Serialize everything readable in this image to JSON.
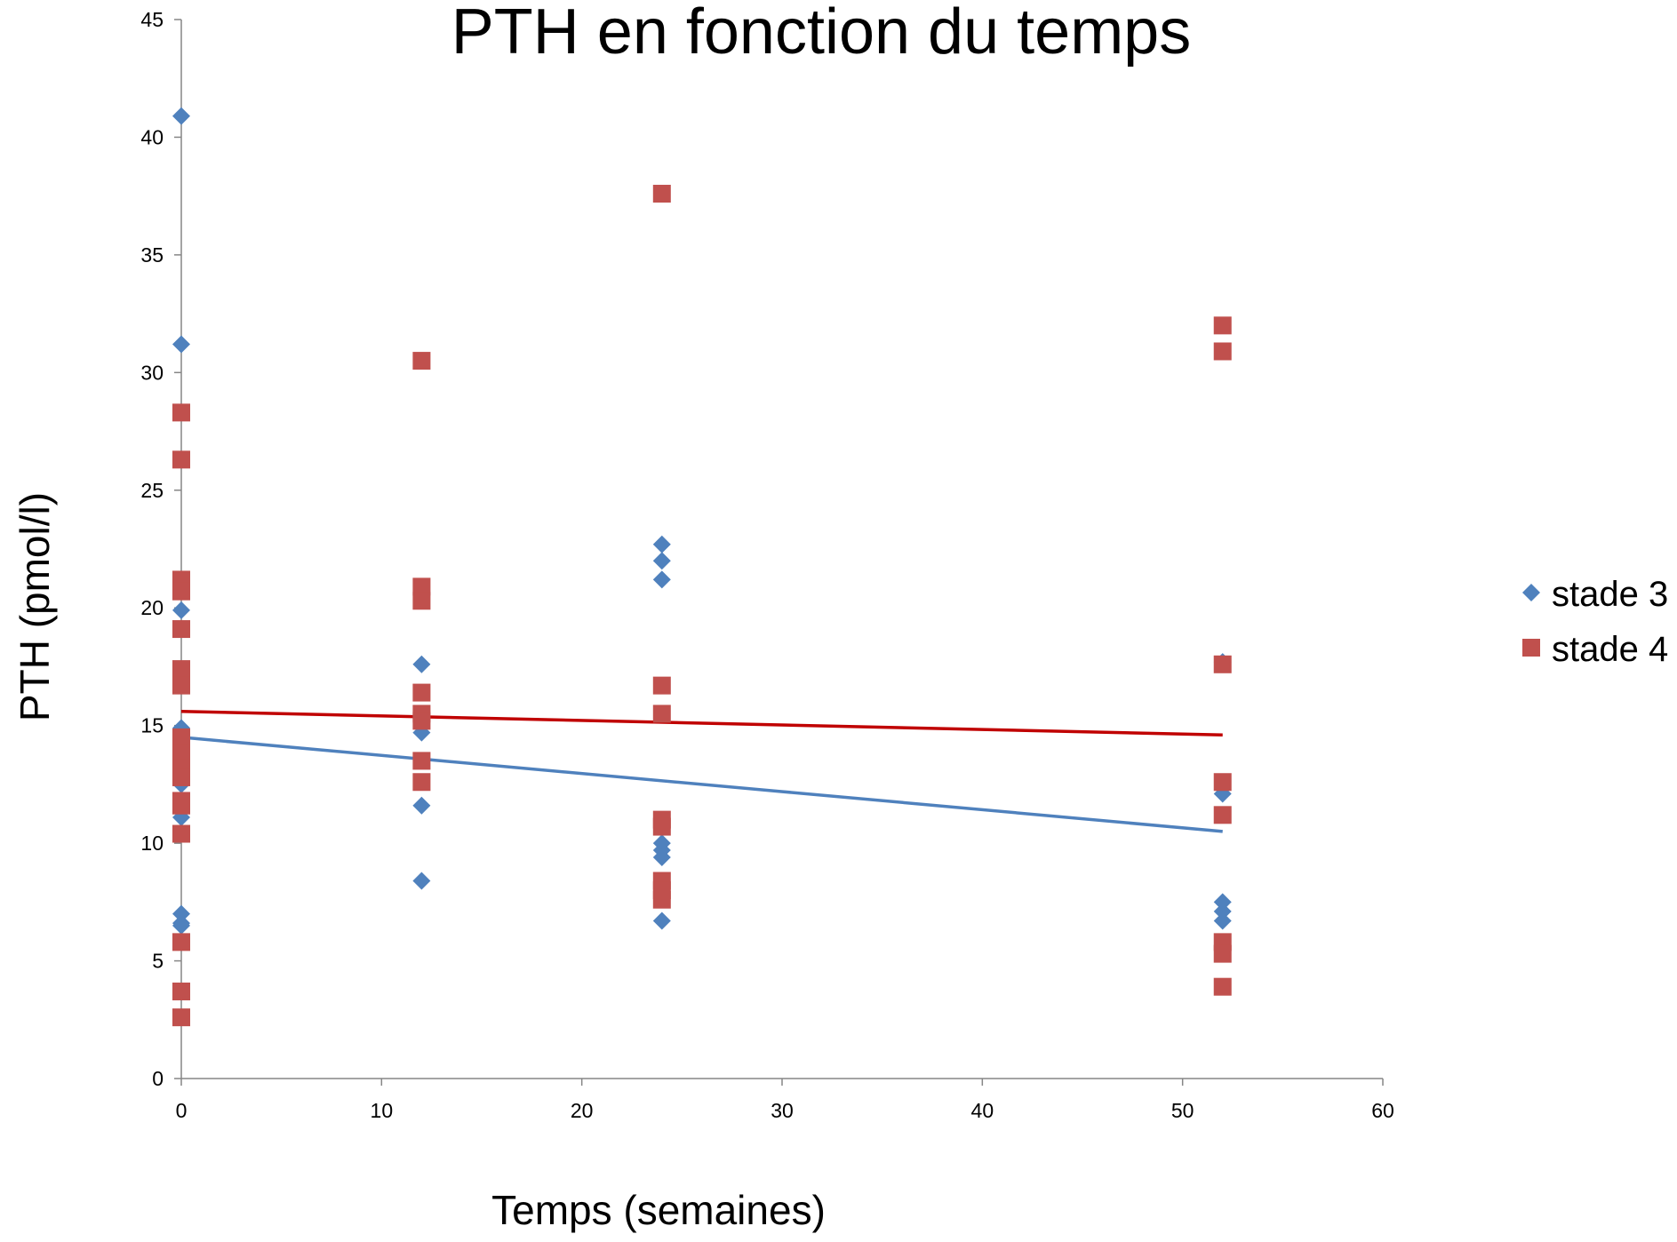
{
  "chart_data": {
    "type": "scatter",
    "title": "PTH en fonction du temps",
    "xlabel": "Temps (semaines)",
    "ylabel": "PTH (pmol/l)",
    "xlim": [
      0,
      60
    ],
    "ylim": [
      0,
      45
    ],
    "x_ticks": [
      0,
      10,
      20,
      30,
      40,
      50,
      60
    ],
    "y_ticks": [
      0,
      5,
      10,
      15,
      20,
      25,
      30,
      35,
      40,
      45
    ],
    "grid": false,
    "legend_position": "right",
    "series": [
      {
        "name": "stade 3",
        "marker": "diamond",
        "color": "#4F81BD",
        "points": [
          [
            0,
            40.9
          ],
          [
            0,
            31.2
          ],
          [
            0,
            19.9
          ],
          [
            0,
            14.9
          ],
          [
            0,
            14.2
          ],
          [
            0,
            13.8
          ],
          [
            0,
            13.1
          ],
          [
            0,
            12.5
          ],
          [
            0,
            11.8
          ],
          [
            0,
            11.1
          ],
          [
            0,
            7.0
          ],
          [
            0,
            6.6
          ],
          [
            0,
            6.5
          ],
          [
            12,
            17.6
          ],
          [
            12,
            15.2
          ],
          [
            12,
            14.7
          ],
          [
            12,
            11.6
          ],
          [
            12,
            8.4
          ],
          [
            24,
            22.7
          ],
          [
            24,
            22.0
          ],
          [
            24,
            21.2
          ],
          [
            24,
            10.0
          ],
          [
            24,
            9.7
          ],
          [
            24,
            9.4
          ],
          [
            24,
            6.7
          ],
          [
            52,
            17.7
          ],
          [
            52,
            12.1
          ],
          [
            52,
            7.5
          ],
          [
            52,
            7.1
          ],
          [
            52,
            6.7
          ]
        ],
        "trend": [
          [
            0,
            14.5
          ],
          [
            52,
            10.5
          ]
        ],
        "trend_color": "#4F81BD"
      },
      {
        "name": "stade 4",
        "marker": "square",
        "color": "#C0504D",
        "points": [
          [
            0,
            28.3
          ],
          [
            0,
            26.3
          ],
          [
            0,
            21.2
          ],
          [
            0,
            20.7
          ],
          [
            0,
            19.1
          ],
          [
            0,
            17.4
          ],
          [
            0,
            16.7
          ],
          [
            0,
            14.5
          ],
          [
            0,
            13.8
          ],
          [
            0,
            13.2
          ],
          [
            0,
            12.8
          ],
          [
            0,
            11.8
          ],
          [
            0,
            11.6
          ],
          [
            0,
            10.4
          ],
          [
            0,
            5.8
          ],
          [
            0,
            3.7
          ],
          [
            0,
            2.6
          ],
          [
            12,
            30.5
          ],
          [
            12,
            20.9
          ],
          [
            12,
            20.3
          ],
          [
            12,
            16.4
          ],
          [
            12,
            15.5
          ],
          [
            12,
            15.2
          ],
          [
            12,
            13.5
          ],
          [
            12,
            12.6
          ],
          [
            24,
            37.6
          ],
          [
            24,
            16.7
          ],
          [
            24,
            15.5
          ],
          [
            24,
            11.0
          ],
          [
            24,
            10.7
          ],
          [
            24,
            8.4
          ],
          [
            24,
            8.0
          ],
          [
            24,
            7.6
          ],
          [
            52,
            32.0
          ],
          [
            52,
            30.9
          ],
          [
            52,
            17.6
          ],
          [
            52,
            12.6
          ],
          [
            52,
            11.2
          ],
          [
            52,
            5.8
          ],
          [
            52,
            5.3
          ],
          [
            52,
            3.9
          ]
        ],
        "trend": [
          [
            0,
            15.6
          ],
          [
            52,
            14.6
          ]
        ],
        "trend_color": "#C00000"
      }
    ]
  }
}
